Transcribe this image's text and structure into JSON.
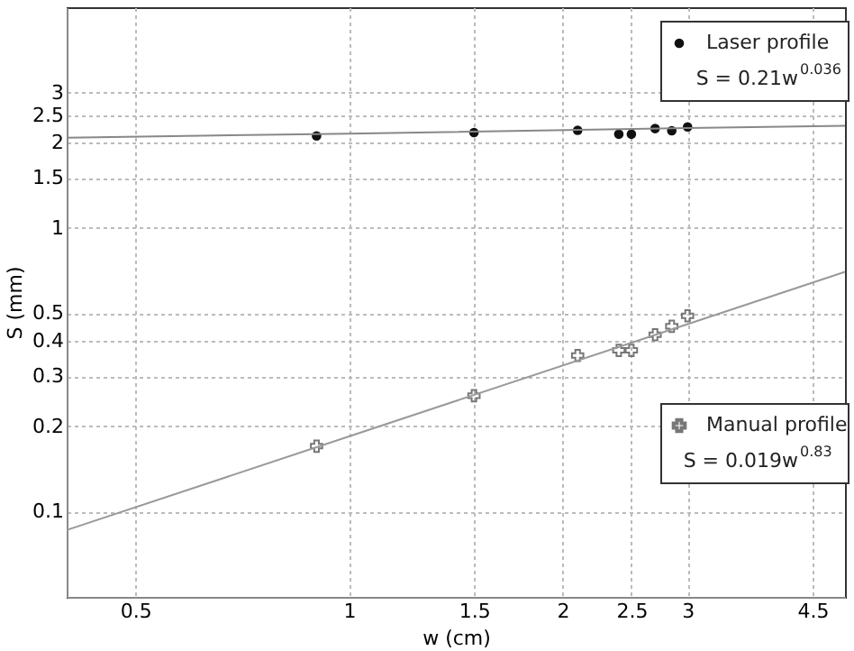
{
  "chart_data": {
    "type": "scatter",
    "xlabel": "w (cm)",
    "ylabel": "S (mm)",
    "log": "xy",
    "xlim": [
      0.4,
      5
    ],
    "ylim": [
      0.05,
      6
    ],
    "xticks": [
      0.5,
      1,
      1.5,
      2,
      2.5,
      3,
      4.5
    ],
    "yticks": [
      0.1,
      0.2,
      0.3,
      0.4,
      0.5,
      1,
      1.5,
      2,
      2.5,
      3
    ],
    "grid": true,
    "legend": "right",
    "x": [
      0.9,
      1.5,
      2.1,
      2.4,
      2.5,
      2.7,
      2.85,
      3.0
    ],
    "series": [
      {
        "name": "Laser profile",
        "marker": "circle",
        "color": "#111111",
        "values": [
          2.11,
          2.17,
          2.21,
          2.14,
          2.14,
          2.24,
          2.2,
          2.27
        ]
      },
      {
        "name": "Manual profile",
        "marker": "cross",
        "color": "#777777",
        "values": [
          0.17,
          0.256,
          0.355,
          0.37,
          0.37,
          0.42,
          0.45,
          0.49
        ]
      },
      {
        "type": "line",
        "x": [
          0.4,
          1,
          3,
          5
        ],
        "color": "#888888",
        "values": [
          2.08,
          2.15,
          2.25,
          2.29
        ]
      },
      {
        "type": "line",
        "x": [
          0.4,
          1,
          3,
          5
        ],
        "color": "#999999",
        "values": [
          0.086,
          0.184,
          0.458,
          0.7
        ]
      }
    ],
    "annotations": [
      "S = 0.21w$^{0.036}$",
      "S = 0.019w$^{0.83}$"
    ]
  }
}
